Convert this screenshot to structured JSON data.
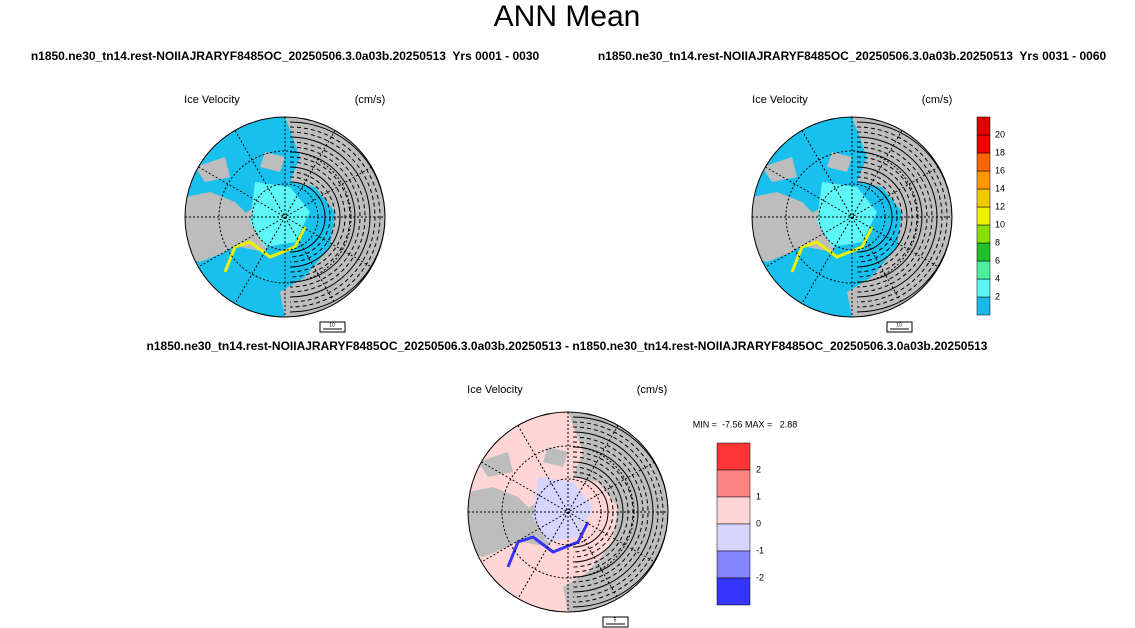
{
  "title": "ANN Mean",
  "panels": [
    {
      "case": "n1850.ne30_tn14.rest-NOIIAJRARYF8485OC_20250506.3.0a03b.20250513  Yrs 0001 - 0030",
      "field": "Ice Velocity",
      "units": "(cm/s)",
      "ref_vector": "10"
    },
    {
      "case": "n1850.ne30_tn14.rest-NOIIAJRARYF8485OC_20250506.3.0a03b.20250513  Yrs 0031 - 0060",
      "field": "Ice Velocity",
      "units": "(cm/s)",
      "ref_vector": "10"
    },
    {
      "case": "n1850.ne30_tn14.rest-NOIIAJRARYF8485OC_20250506.3.0a03b.20250513 - n1850.ne30_tn14.rest-NOIIAJRARYF8485OC_20250506.3.0a03b.20250513",
      "field": "Ice Velocity",
      "units": "(cm/s)",
      "ref_vector": "5",
      "min_max": "MIN =  -7.56 MAX =   2.88"
    }
  ],
  "colorbar": {
    "labels": [
      2,
      4,
      6,
      8,
      10,
      12,
      14,
      16,
      18,
      20
    ],
    "colors": [
      "#18b8e8",
      "#5ef7f7",
      "#4ef0a0",
      "#22c02a",
      "#88e000",
      "#f0f000",
      "#f0c800",
      "#ff9800",
      "#ff6400",
      "#f00000",
      "#e00000"
    ]
  },
  "diff_colorbar": {
    "labels": [
      2,
      1,
      0,
      -1,
      -2
    ],
    "colors": [
      "#ff3535",
      "#ff8585",
      "#ffd5d5",
      "#d5d5ff",
      "#8585ff",
      "#3535ff"
    ]
  }
}
